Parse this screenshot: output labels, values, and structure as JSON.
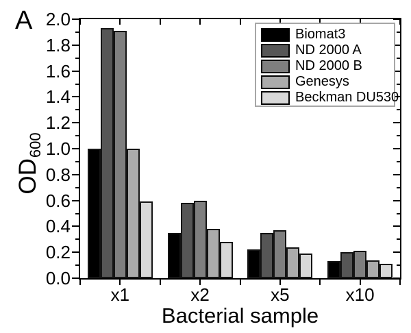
{
  "panel_label": "A",
  "chart_data": {
    "type": "bar",
    "title": "",
    "xlabel": "Bacterial sample",
    "ylabel": "OD",
    "ylabel_subscript": "600",
    "categories": [
      "x1",
      "x2",
      "x5",
      "x10"
    ],
    "series": [
      {
        "name": "Biomat3",
        "color": "#000000",
        "values": [
          1.0,
          0.35,
          0.22,
          0.13
        ]
      },
      {
        "name": "ND 2000 A",
        "color": "#565656",
        "values": [
          1.93,
          0.58,
          0.35,
          0.2
        ]
      },
      {
        "name": "ND 2000 B",
        "color": "#7f7f7f",
        "values": [
          1.91,
          0.6,
          0.37,
          0.21
        ]
      },
      {
        "name": "Genesys",
        "color": "#ababab",
        "values": [
          1.0,
          0.38,
          0.24,
          0.14
        ]
      },
      {
        "name": "Beckman DU530",
        "color": "#d8d8d8",
        "values": [
          0.59,
          0.28,
          0.19,
          0.11
        ]
      }
    ],
    "ylim": [
      0,
      2.0
    ],
    "ytick_step": 0.2,
    "ytick_minor_step": 0.1,
    "ytick_labels": [
      "0.0",
      "0.2",
      "0.4",
      "0.6",
      "0.8",
      "1.0",
      "1.2",
      "1.4",
      "1.6",
      "1.8",
      "2.0"
    ],
    "legend_position": "top-right",
    "grid": false,
    "bar_border_color": "#141414",
    "axis_color": "#000000"
  }
}
